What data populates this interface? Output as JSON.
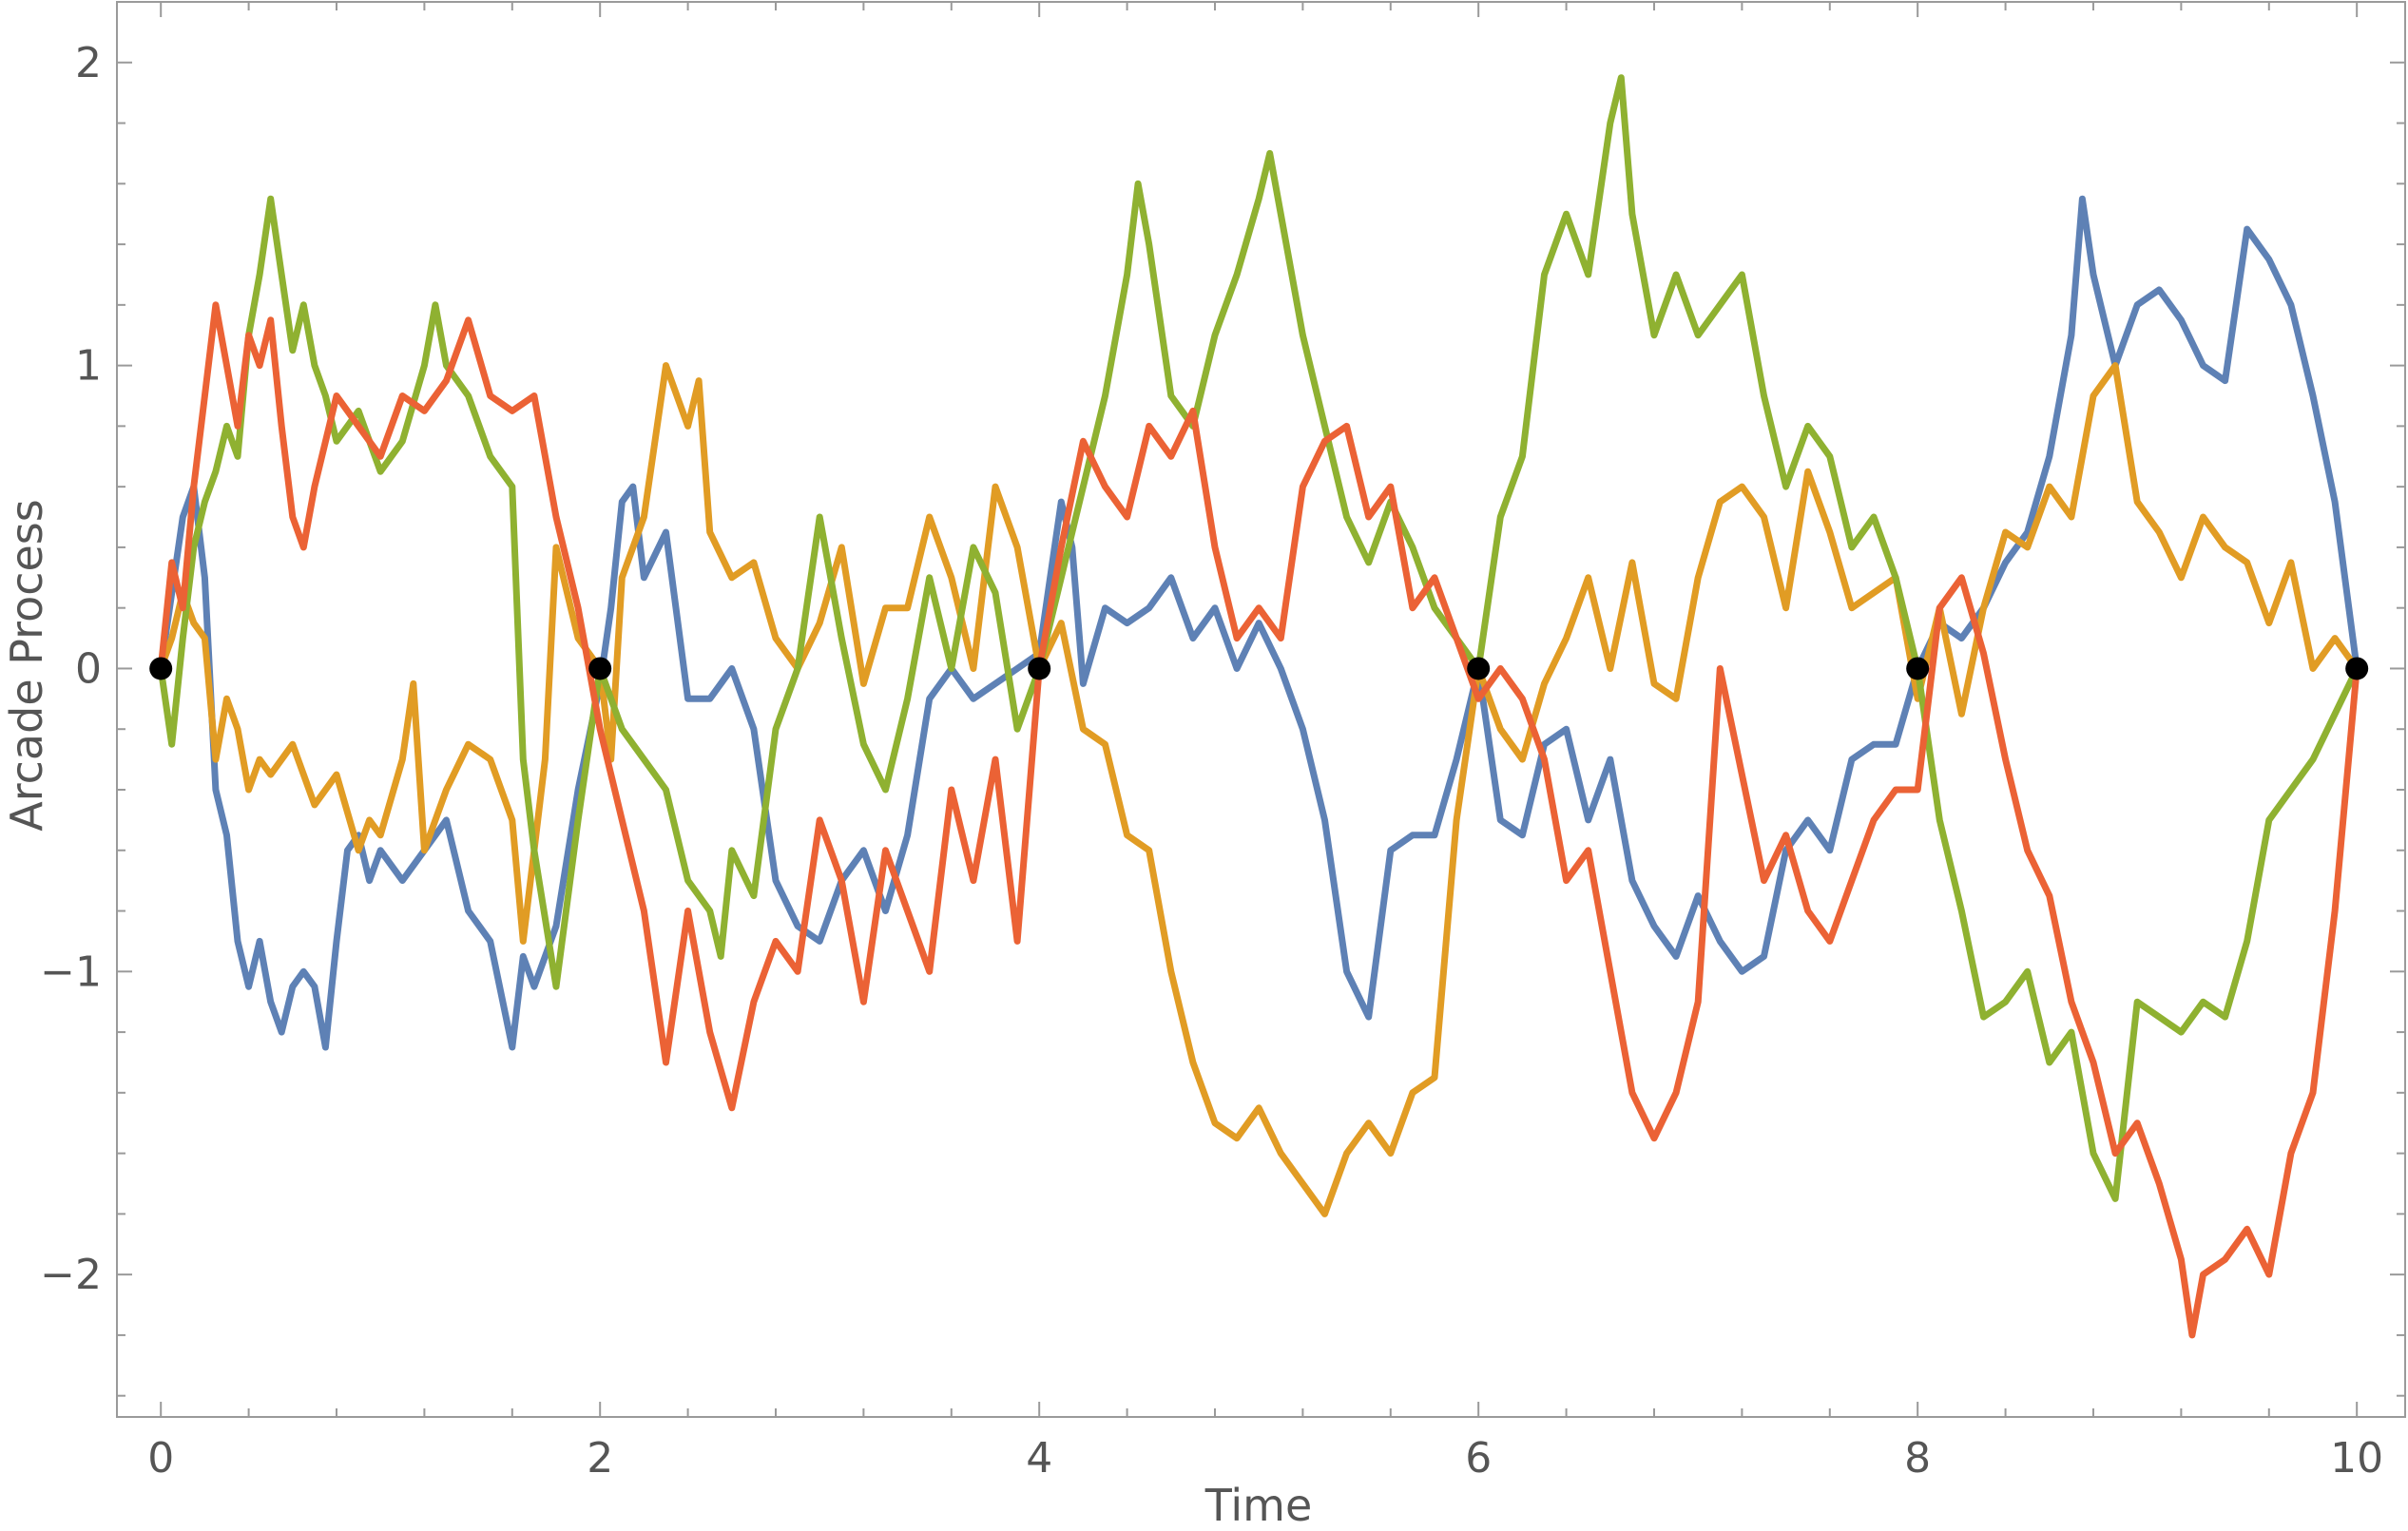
{
  "chart_data": {
    "type": "line",
    "title": "",
    "xlabel": "Time",
    "ylabel": "Arcade Process",
    "xlim": [
      -0.2,
      10.22
    ],
    "ylim": [
      -2.47,
      2.2
    ],
    "x_ticks": [
      0,
      2,
      4,
      6,
      8,
      10
    ],
    "x_tick_labels": [
      "0",
      "2",
      "4",
      "6",
      "8",
      "10"
    ],
    "y_ticks": [
      -2,
      -1,
      0,
      1,
      2
    ],
    "y_tick_labels": [
      "−2",
      "−1",
      "0",
      "1",
      "2"
    ],
    "grid": false,
    "legend": "none",
    "series": [
      {
        "color": "#5E81B5",
        "x": [
          0,
          0.1,
          0.15,
          0.2,
          0.25,
          0.3,
          0.35,
          0.4,
          0.45,
          0.5,
          0.55,
          0.6,
          0.65,
          0.7,
          0.75,
          0.8,
          0.85,
          0.9,
          0.95,
          1.0,
          1.1,
          1.2,
          1.3,
          1.4,
          1.5,
          1.6,
          1.65,
          1.7,
          1.8,
          1.9,
          2.0,
          2.05,
          2.1,
          2.15,
          2.2,
          2.3,
          2.4,
          2.5,
          2.6,
          2.7,
          2.8,
          2.9,
          3.0,
          3.1,
          3.2,
          3.3,
          3.4,
          3.5,
          3.6,
          3.7,
          3.8,
          3.9,
          4.0,
          4.05,
          4.1,
          4.15,
          4.2,
          4.3,
          4.4,
          4.5,
          4.6,
          4.7,
          4.8,
          4.9,
          5.0,
          5.1,
          5.2,
          5.3,
          5.4,
          5.5,
          5.6,
          5.7,
          5.8,
          5.9,
          6.0,
          6.1,
          6.2,
          6.3,
          6.4,
          6.5,
          6.6,
          6.7,
          6.8,
          6.9,
          7.0,
          7.1,
          7.2,
          7.3,
          7.4,
          7.5,
          7.6,
          7.7,
          7.8,
          7.9,
          8.0,
          8.1,
          8.2,
          8.3,
          8.4,
          8.5,
          8.6,
          8.7,
          8.75,
          8.8,
          8.9,
          9.0,
          9.1,
          9.2,
          9.3,
          9.4,
          9.5,
          9.6,
          9.7,
          9.8,
          9.9,
          10.0
        ],
        "y": [
          0,
          0.5,
          0.6,
          0.3,
          -0.4,
          -0.55,
          -0.9,
          -1.05,
          -0.9,
          -1.1,
          -1.2,
          -1.05,
          -1.0,
          -1.05,
          -1.25,
          -0.9,
          -0.6,
          -0.55,
          -0.7,
          -0.6,
          -0.7,
          -0.6,
          -0.5,
          -0.8,
          -0.9,
          -1.25,
          -0.95,
          -1.05,
          -0.85,
          -0.4,
          -0.05,
          0.2,
          0.55,
          0.6,
          0.3,
          0.45,
          -0.1,
          -0.1,
          0.0,
          -0.2,
          -0.7,
          -0.85,
          -0.9,
          -0.7,
          -0.6,
          -0.8,
          -0.55,
          -0.1,
          0.0,
          -0.1,
          -0.05,
          0.0,
          0.05,
          0.3,
          0.55,
          0.4,
          -0.05,
          0.2,
          0.15,
          0.2,
          0.3,
          0.1,
          0.2,
          0.0,
          0.15,
          0.0,
          -0.2,
          -0.5,
          -1.0,
          -1.15,
          -0.6,
          -0.55,
          -0.55,
          -0.3,
          0.0,
          -0.5,
          -0.55,
          -0.25,
          -0.2,
          -0.5,
          -0.3,
          -0.7,
          -0.85,
          -0.95,
          -0.75,
          -0.9,
          -1.0,
          -0.95,
          -0.6,
          -0.5,
          -0.6,
          -0.3,
          -0.25,
          -0.25,
          0.0,
          0.15,
          0.1,
          0.2,
          0.35,
          0.45,
          0.7,
          1.1,
          1.55,
          1.3,
          1.0,
          1.2,
          1.25,
          1.15,
          1.0,
          0.95,
          1.45,
          1.35,
          1.2,
          0.9,
          0.55,
          0.0
        ]
      },
      {
        "color": "#E19C24",
        "x": [
          0,
          0.05,
          0.1,
          0.15,
          0.2,
          0.25,
          0.3,
          0.35,
          0.4,
          0.45,
          0.5,
          0.6,
          0.7,
          0.8,
          0.9,
          0.95,
          1.0,
          1.1,
          1.15,
          1.2,
          1.3,
          1.4,
          1.5,
          1.6,
          1.65,
          1.7,
          1.75,
          1.8,
          1.9,
          2.0,
          2.05,
          2.1,
          2.2,
          2.3,
          2.4,
          2.45,
          2.5,
          2.6,
          2.7,
          2.8,
          2.9,
          3.0,
          3.1,
          3.2,
          3.3,
          3.4,
          3.5,
          3.6,
          3.7,
          3.8,
          3.9,
          4.0,
          4.1,
          4.2,
          4.3,
          4.4,
          4.5,
          4.6,
          4.7,
          4.8,
          4.9,
          5.0,
          5.1,
          5.2,
          5.3,
          5.4,
          5.5,
          5.6,
          5.7,
          5.8,
          5.9,
          6.0,
          6.1,
          6.2,
          6.3,
          6.4,
          6.5,
          6.6,
          6.7,
          6.8,
          6.9,
          7.0,
          7.1,
          7.2,
          7.3,
          7.4,
          7.5,
          7.6,
          7.7,
          7.8,
          7.9,
          8.0,
          8.1,
          8.2,
          8.3,
          8.4,
          8.5,
          8.6,
          8.7,
          8.8,
          8.9,
          9.0,
          9.1,
          9.2,
          9.3,
          9.4,
          9.5,
          9.6,
          9.7,
          9.8,
          9.9,
          10.0
        ],
        "y": [
          0,
          0.1,
          0.25,
          0.15,
          0.1,
          -0.3,
          -0.1,
          -0.2,
          -0.4,
          -0.3,
          -0.35,
          -0.25,
          -0.45,
          -0.35,
          -0.6,
          -0.5,
          -0.55,
          -0.3,
          -0.05,
          -0.6,
          -0.4,
          -0.25,
          -0.3,
          -0.5,
          -0.9,
          -0.6,
          -0.3,
          0.4,
          0.1,
          0.0,
          -0.3,
          0.3,
          0.5,
          1.0,
          0.8,
          0.95,
          0.45,
          0.3,
          0.35,
          0.1,
          0.0,
          0.15,
          0.4,
          -0.05,
          0.2,
          0.2,
          0.5,
          0.3,
          0.0,
          0.6,
          0.4,
          0.0,
          0.15,
          -0.2,
          -0.25,
          -0.55,
          -0.6,
          -1.0,
          -1.3,
          -1.5,
          -1.55,
          -1.45,
          -1.6,
          -1.7,
          -1.8,
          -1.6,
          -1.5,
          -1.6,
          -1.4,
          -1.35,
          -0.5,
          0.0,
          -0.2,
          -0.3,
          -0.05,
          0.1,
          0.3,
          0.0,
          0.35,
          -0.05,
          -0.1,
          0.3,
          0.55,
          0.6,
          0.5,
          0.2,
          0.65,
          0.45,
          0.2,
          0.25,
          0.3,
          -0.1,
          0.2,
          -0.15,
          0.2,
          0.45,
          0.4,
          0.6,
          0.5,
          0.9,
          1.0,
          0.55,
          0.45,
          0.3,
          0.5,
          0.4,
          0.35,
          0.15,
          0.35,
          0.0,
          0.1,
          0.0
        ]
      },
      {
        "color": "#8FB131",
        "x": [
          0,
          0.05,
          0.1,
          0.15,
          0.2,
          0.25,
          0.3,
          0.35,
          0.4,
          0.45,
          0.5,
          0.55,
          0.6,
          0.65,
          0.7,
          0.75,
          0.8,
          0.9,
          1.0,
          1.1,
          1.2,
          1.25,
          1.3,
          1.4,
          1.5,
          1.6,
          1.65,
          1.7,
          1.8,
          1.9,
          2.0,
          2.1,
          2.2,
          2.3,
          2.4,
          2.5,
          2.55,
          2.6,
          2.7,
          2.8,
          2.9,
          3.0,
          3.1,
          3.2,
          3.3,
          3.4,
          3.5,
          3.6,
          3.7,
          3.8,
          3.9,
          4.0,
          4.1,
          4.2,
          4.3,
          4.4,
          4.45,
          4.5,
          4.6,
          4.7,
          4.8,
          4.9,
          5.0,
          5.05,
          5.1,
          5.2,
          5.3,
          5.4,
          5.5,
          5.6,
          5.7,
          5.8,
          5.9,
          6.0,
          6.1,
          6.2,
          6.3,
          6.4,
          6.5,
          6.6,
          6.65,
          6.7,
          6.8,
          6.9,
          7.0,
          7.1,
          7.2,
          7.3,
          7.4,
          7.5,
          7.6,
          7.7,
          7.8,
          7.9,
          8.0,
          8.1,
          8.2,
          8.3,
          8.4,
          8.5,
          8.6,
          8.7,
          8.8,
          8.9,
          9.0,
          9.1,
          9.2,
          9.3,
          9.4,
          9.5,
          9.6,
          9.7,
          9.8,
          9.9,
          10.0
        ],
        "y": [
          0,
          -0.25,
          0.1,
          0.4,
          0.55,
          0.65,
          0.8,
          0.7,
          1.1,
          1.3,
          1.55,
          1.3,
          1.05,
          1.2,
          1.0,
          0.9,
          0.75,
          0.85,
          0.65,
          0.75,
          1.0,
          1.2,
          1.0,
          0.9,
          0.7,
          0.6,
          -0.3,
          -0.6,
          -1.05,
          -0.5,
          0.0,
          -0.2,
          -0.3,
          -0.4,
          -0.7,
          -0.8,
          -0.95,
          -0.6,
          -0.75,
          -0.2,
          0.0,
          0.5,
          0.1,
          -0.25,
          -0.4,
          -0.1,
          0.3,
          0.0,
          0.4,
          0.25,
          -0.2,
          0.0,
          0.3,
          0.6,
          0.9,
          1.3,
          1.6,
          1.4,
          0.9,
          0.8,
          1.1,
          1.3,
          1.55,
          1.7,
          1.5,
          1.1,
          0.8,
          0.5,
          0.35,
          0.55,
          0.4,
          0.2,
          0.1,
          0.0,
          0.5,
          0.7,
          1.3,
          1.5,
          1.3,
          1.8,
          1.95,
          1.5,
          1.1,
          1.3,
          1.1,
          1.2,
          1.3,
          0.9,
          0.6,
          0.8,
          0.7,
          0.4,
          0.5,
          0.3,
          0.0,
          -0.5,
          -0.8,
          -1.15,
          -1.1,
          -1.0,
          -1.3,
          -1.2,
          -1.6,
          -1.75,
          -1.1,
          -1.15,
          -1.2,
          -1.1,
          -1.15,
          -0.9,
          -0.5,
          -0.4,
          -0.3,
          -0.15,
          0.0
        ]
      },
      {
        "color": "#EB6235",
        "x": [
          0,
          0.05,
          0.1,
          0.15,
          0.2,
          0.25,
          0.3,
          0.35,
          0.4,
          0.45,
          0.5,
          0.55,
          0.6,
          0.65,
          0.7,
          0.8,
          0.9,
          1.0,
          1.1,
          1.2,
          1.3,
          1.4,
          1.5,
          1.6,
          1.7,
          1.8,
          1.9,
          2.0,
          2.1,
          2.2,
          2.3,
          2.4,
          2.5,
          2.6,
          2.7,
          2.8,
          2.9,
          3.0,
          3.1,
          3.2,
          3.3,
          3.4,
          3.5,
          3.6,
          3.7,
          3.8,
          3.9,
          4.0,
          4.1,
          4.2,
          4.3,
          4.4,
          4.5,
          4.6,
          4.7,
          4.8,
          4.9,
          5.0,
          5.1,
          5.2,
          5.3,
          5.4,
          5.5,
          5.6,
          5.7,
          5.8,
          5.9,
          6.0,
          6.1,
          6.2,
          6.3,
          6.4,
          6.5,
          6.6,
          6.7,
          6.8,
          6.9,
          7.0,
          7.1,
          7.2,
          7.3,
          7.4,
          7.5,
          7.6,
          7.7,
          7.8,
          7.9,
          8.0,
          8.1,
          8.2,
          8.3,
          8.4,
          8.5,
          8.6,
          8.7,
          8.8,
          8.9,
          9.0,
          9.1,
          9.2,
          9.25,
          9.3,
          9.4,
          9.5,
          9.6,
          9.7,
          9.8,
          9.9,
          10.0
        ],
        "y": [
          0,
          0.35,
          0.2,
          0.6,
          0.9,
          1.2,
          1.0,
          0.8,
          1.1,
          1.0,
          1.15,
          0.8,
          0.5,
          0.4,
          0.6,
          0.9,
          0.8,
          0.7,
          0.9,
          0.85,
          0.95,
          1.15,
          0.9,
          0.85,
          0.9,
          0.5,
          0.2,
          -0.2,
          -0.5,
          -0.8,
          -1.3,
          -0.8,
          -1.2,
          -1.45,
          -1.1,
          -0.9,
          -1.0,
          -0.5,
          -0.7,
          -1.1,
          -0.6,
          -0.8,
          -1.0,
          -0.4,
          -0.7,
          -0.3,
          -0.9,
          0.0,
          0.4,
          0.75,
          0.6,
          0.5,
          0.8,
          0.7,
          0.85,
          0.4,
          0.1,
          0.2,
          0.1,
          0.6,
          0.75,
          0.8,
          0.5,
          0.6,
          0.2,
          0.3,
          0.1,
          -0.1,
          0.0,
          -0.1,
          -0.3,
          -0.7,
          -0.6,
          -1.0,
          -1.4,
          -1.55,
          -1.4,
          -1.1,
          0.0,
          -0.35,
          -0.7,
          -0.55,
          -0.8,
          -0.9,
          -0.7,
          -0.5,
          -0.4,
          -0.4,
          0.2,
          0.3,
          0.05,
          -0.3,
          -0.6,
          -0.75,
          -1.1,
          -1.3,
          -1.6,
          -1.5,
          -1.7,
          -1.95,
          -2.2,
          -2.0,
          -1.95,
          -1.85,
          -2.0,
          -1.6,
          -1.4,
          -0.8,
          0.0
        ]
      }
    ],
    "markers": {
      "color": "#000000",
      "x": [
        0,
        2,
        4,
        6,
        8,
        10
      ],
      "y": [
        0,
        0,
        0,
        0,
        0,
        0
      ]
    }
  }
}
